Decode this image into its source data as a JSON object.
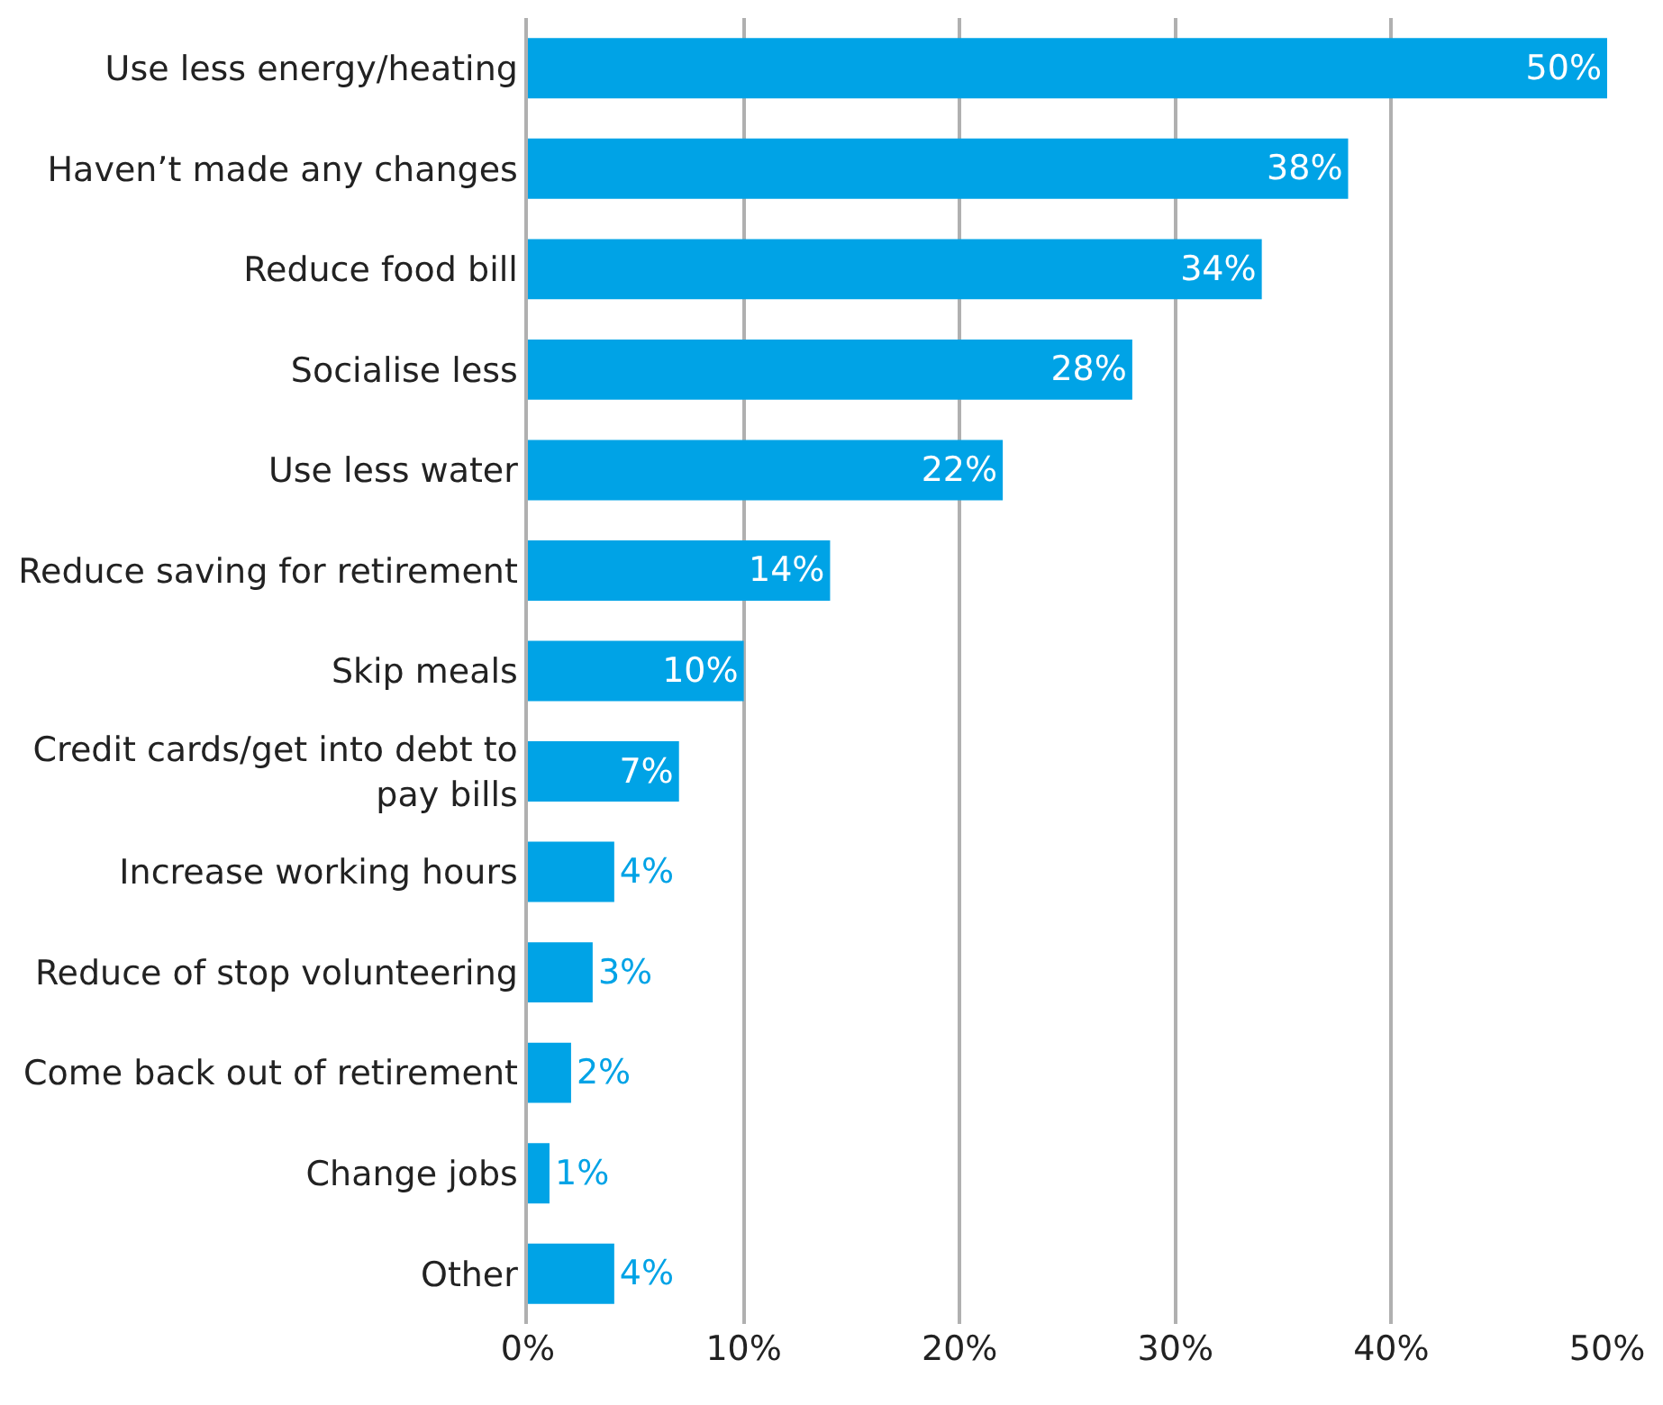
{
  "chart_data": {
    "type": "bar",
    "orientation": "horizontal",
    "categories": [
      "Use less energy/heating",
      "Haven’t made any changes",
      "Reduce food bill",
      "Socialise less",
      "Use less water",
      "Reduce saving for retirement",
      "Skip meals",
      "Credit cards/get into debt to pay bills",
      "Increase working hours",
      "Reduce of stop volunteering",
      "Come back out of retirement",
      "Change jobs",
      "Other"
    ],
    "values": [
      50,
      38,
      34,
      28,
      22,
      14,
      10,
      7,
      4,
      3,
      2,
      1,
      4
    ],
    "value_labels": [
      "50%",
      "38%",
      "34%",
      "28%",
      "22%",
      "14%",
      "10%",
      "7%",
      "4%",
      "3%",
      "2%",
      "1%",
      "4%"
    ],
    "color": "#00a3e6",
    "xlim": [
      0,
      50
    ],
    "xticks": [
      {
        "value": 0,
        "label": "0%"
      },
      {
        "value": 10,
        "label": "10%"
      },
      {
        "value": 20,
        "label": "20%"
      },
      {
        "value": 30,
        "label": "30%"
      },
      {
        "value": 40,
        "label": "40%"
      },
      {
        "value": 50,
        "label": "50%"
      }
    ],
    "grid": "x"
  }
}
